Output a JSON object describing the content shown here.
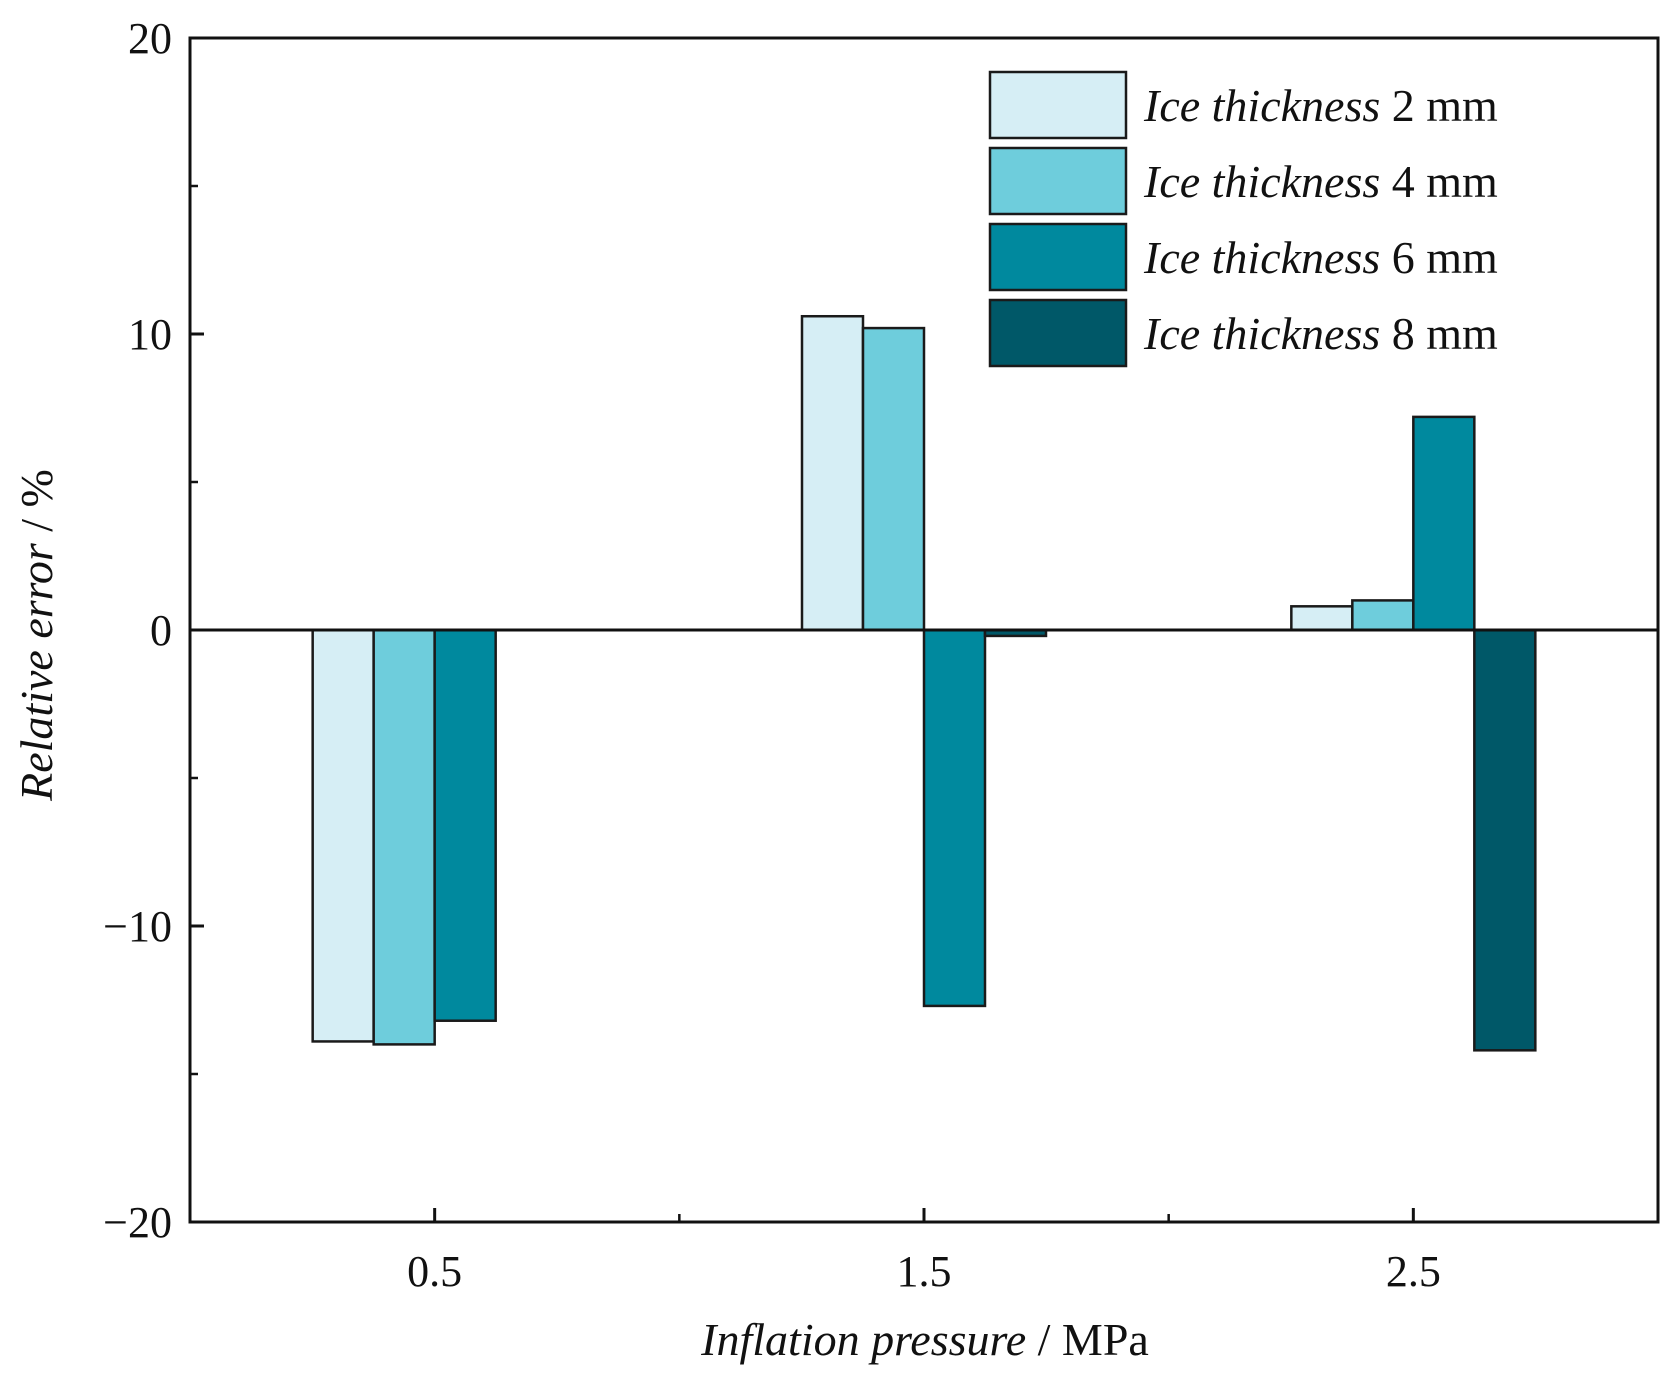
{
  "chart_data": {
    "type": "bar",
    "title": "",
    "xlabel": {
      "italic": "Inflation pressure",
      "unit": " / MPa"
    },
    "ylabel": {
      "italic": "Relative error",
      "unit": " / %"
    },
    "ylim": [
      -20,
      20
    ],
    "y_major_ticks": [
      -20,
      -10,
      0,
      10,
      20
    ],
    "y_tick_labels": [
      "−20",
      "−10",
      "0",
      "10",
      "20"
    ],
    "y_minor_ticks": [
      -15,
      -5,
      5,
      15
    ],
    "categories": [
      "0.5",
      "1.5",
      "2.5"
    ],
    "x_minor_ticks": [
      1.0,
      2.0
    ],
    "series": [
      {
        "name": "Ice thickness 2 mm",
        "legend_italic": "Ice thickness",
        "legend_unit": " 2 mm",
        "color": "#d6eef5",
        "values": [
          -13.9,
          10.6,
          0.8
        ]
      },
      {
        "name": "Ice thickness 4 mm",
        "legend_italic": "Ice thickness",
        "legend_unit": " 4 mm",
        "color": "#6ecddc",
        "values": [
          -14.0,
          10.2,
          1.0
        ]
      },
      {
        "name": "Ice thickness 6 mm",
        "legend_italic": "Ice thickness",
        "legend_unit": " 6 mm",
        "color": "#00899e",
        "values": [
          -13.2,
          -12.7,
          7.2
        ]
      },
      {
        "name": "Ice thickness 8 mm",
        "legend_italic": "Ice thickness",
        "legend_unit": " 8 mm",
        "color": "#005868",
        "values": [
          0,
          -0.2,
          -14.2
        ]
      }
    ],
    "zero_line": true,
    "grid": false,
    "legend_position": "top-right"
  }
}
